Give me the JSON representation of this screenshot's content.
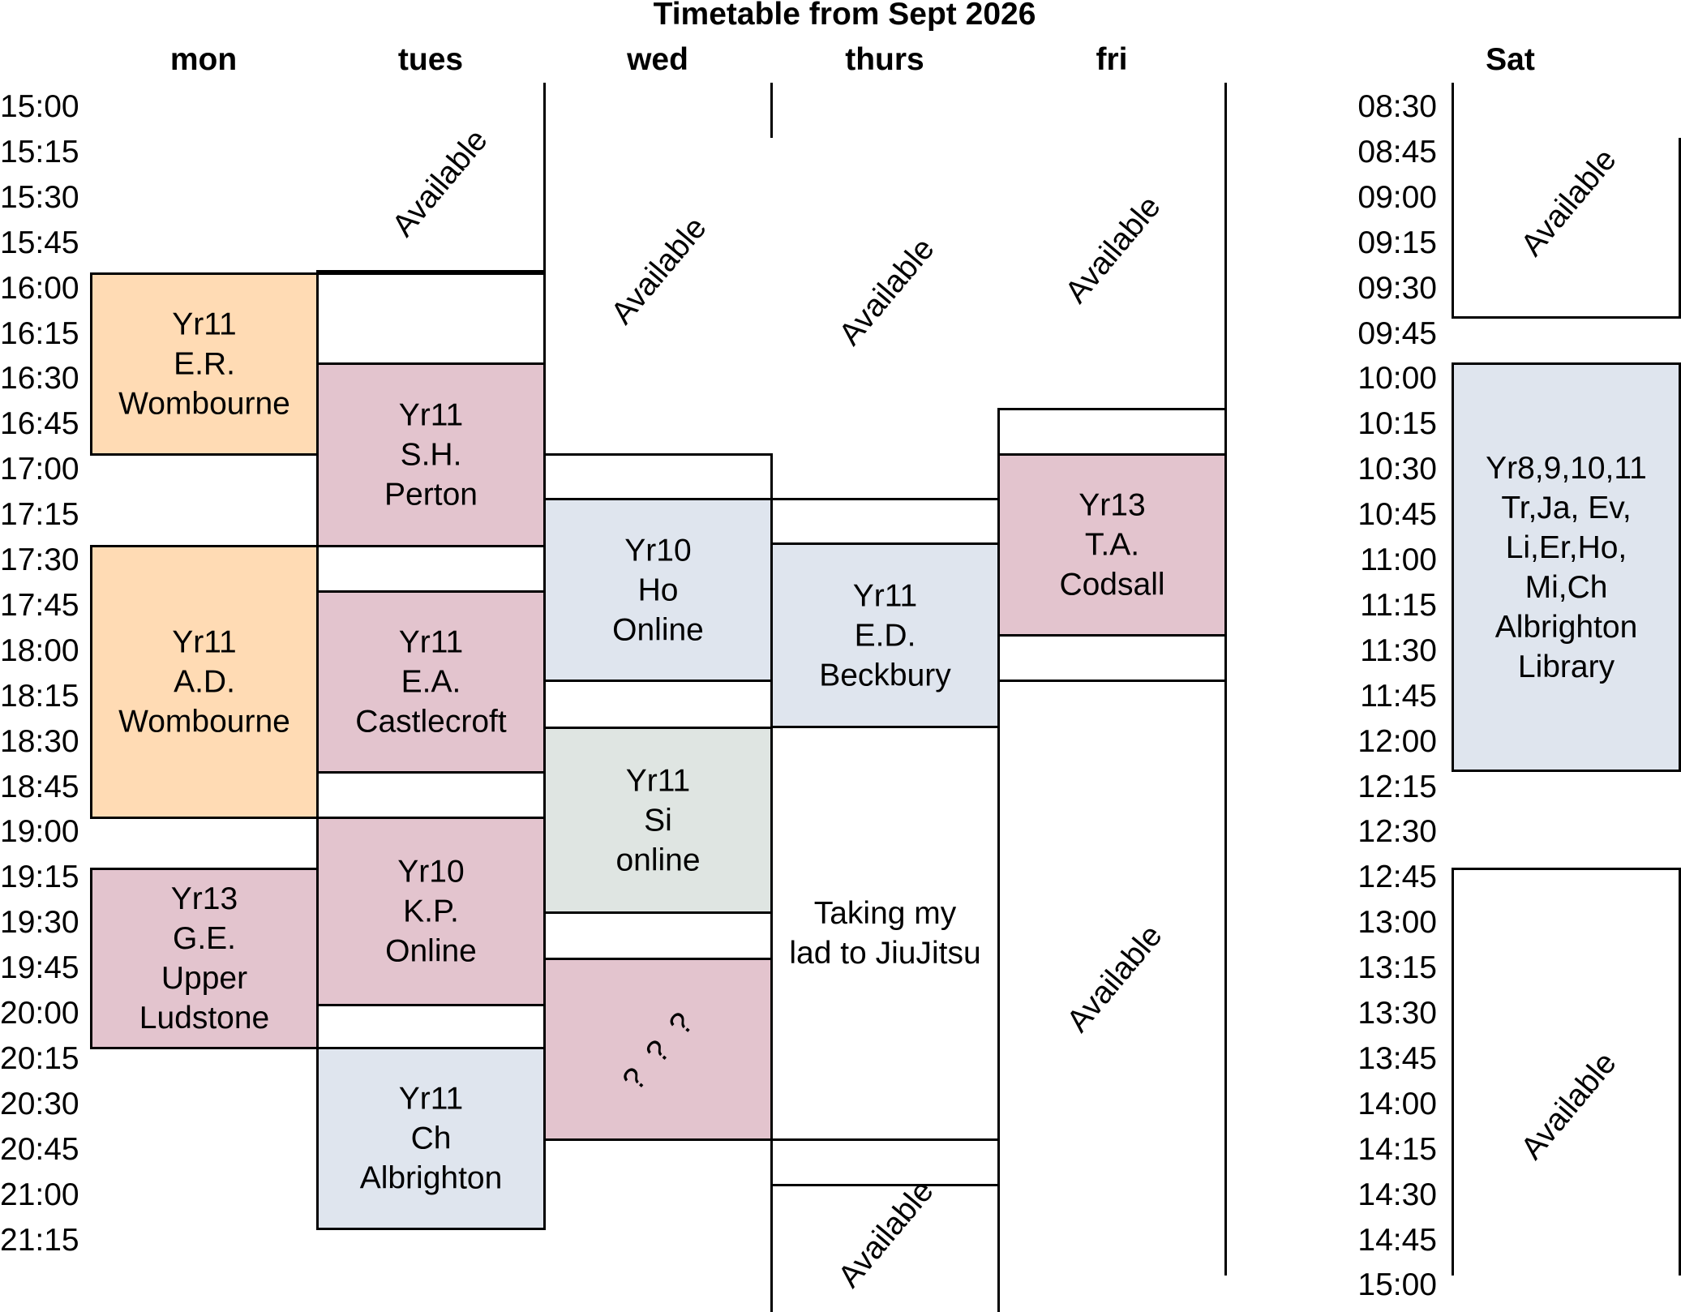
{
  "title": "Timetable from Sept 2026",
  "days": {
    "mon": "mon",
    "tues": "tues",
    "wed": "wed",
    "thurs": "thurs",
    "fri": "fri",
    "sat": "Sat"
  },
  "weekday_times": [
    "15:00",
    "15:15",
    "15:30",
    "15:45",
    "16:00",
    "16:15",
    "16:30",
    "16:45",
    "17:00",
    "17:15",
    "17:30",
    "17:45",
    "18:00",
    "18:15",
    "18:30",
    "18:45",
    "19:00",
    "19:15",
    "19:30",
    "19:45",
    "20:00",
    "20:15",
    "20:30",
    "20:45",
    "21:00",
    "21:15"
  ],
  "saturday_times": [
    "08:30",
    "08:45",
    "09:00",
    "09:15",
    "09:30",
    "09:45",
    "10:00",
    "10:15",
    "10:30",
    "10:45",
    "11:00",
    "11:15",
    "11:30",
    "11:45",
    "12:00",
    "12:15",
    "12:30",
    "12:45",
    "13:00",
    "13:15",
    "13:30",
    "13:45",
    "14:00",
    "14:15",
    "14:30",
    "14:45",
    "15:00"
  ],
  "available_label": "Available",
  "blocks": {
    "mon_er": [
      "Yr11",
      "E.R.",
      "Wombourne"
    ],
    "mon_ad": [
      "Yr11",
      "A.D.",
      "Wombourne"
    ],
    "mon_ge": [
      "Yr13",
      "G.E.",
      "Upper",
      "Ludstone"
    ],
    "tues_sh": [
      "Yr11",
      "S.H.",
      "Perton"
    ],
    "tues_ea": [
      "Yr11",
      "E.A.",
      "Castlecroft"
    ],
    "tues_kp": [
      "Yr10",
      "K.P.",
      "Online"
    ],
    "tues_ch": [
      "Yr11",
      "Ch",
      "Albrighton"
    ],
    "wed_ho": [
      "Yr10",
      "Ho",
      "Online"
    ],
    "wed_si": [
      "Yr11",
      "Si",
      "online"
    ],
    "wed_unknown": "? ? ?",
    "thurs_ed": [
      "Yr11",
      "E.D.",
      "Beckbury"
    ],
    "thurs_jiujitsu": [
      "Taking my",
      "lad to JiuJitsu"
    ],
    "fri_ta": [
      "Yr13",
      "T.A.",
      "Codsall"
    ],
    "sat_group": [
      "Yr8,9,10,11",
      "Tr,Ja, Ev,",
      "Li,Er,Ho,",
      "Mi,Ch",
      "Albrighton",
      "Library"
    ]
  },
  "colors": {
    "peach": "#ffdbb4",
    "pink": "#e3c4ce",
    "blue": "#dfe5ee",
    "grey": "#dfe5e2"
  }
}
